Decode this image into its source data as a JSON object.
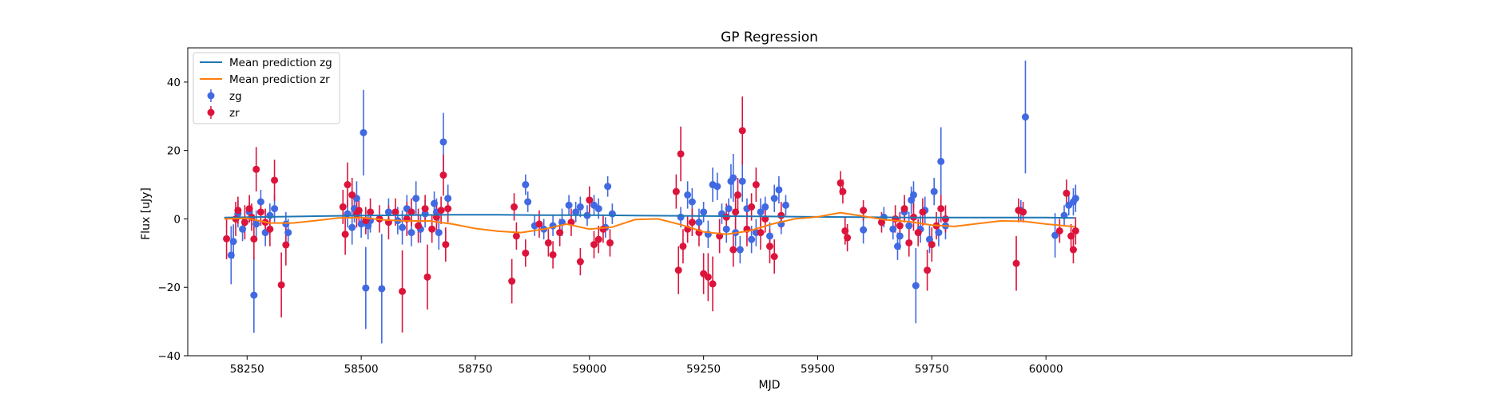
{
  "chart_data": {
    "type": "scatter",
    "title": "GP Regression",
    "xlabel": "MJD",
    "ylabel": "Flux [uJy]",
    "xlim": [
      58120,
      60670
    ],
    "ylim": [
      -40,
      50
    ],
    "xticks": [
      58250,
      58500,
      58750,
      59000,
      59250,
      59500,
      59750,
      60000
    ],
    "yticks": [
      -40,
      -20,
      0,
      20,
      40
    ],
    "grid": false,
    "legend": "top-left",
    "legend_entries": [
      "Mean prediction zg",
      "Mean prediction zr",
      "zg",
      "zr"
    ],
    "colors": {
      "zg_mean": "#1f77b4",
      "zr_mean": "#ff7f0e",
      "zg_points": "#4169e1",
      "zr_points": "#dc143c"
    },
    "series": [
      {
        "name": "Mean prediction zg",
        "kind": "line",
        "x": [
          58200,
          58300,
          58400,
          58500,
          58600,
          58700,
          58800,
          58900,
          59000,
          59100,
          59200,
          59300,
          59400,
          59500,
          59600,
          59700,
          59800,
          59900,
          60000,
          60063
        ],
        "y": [
          0.4,
          0.6,
          0.8,
          1.0,
          1.1,
          1.2,
          1.2,
          1.1,
          1.1,
          1.0,
          0.9,
          0.8,
          0.7,
          0.6,
          0.5,
          0.4,
          0.4,
          0.4,
          0.4,
          0.3
        ]
      },
      {
        "name": "Mean prediction zr",
        "kind": "line",
        "x": [
          58200,
          58250,
          58300,
          58350,
          58400,
          58450,
          58500,
          58550,
          58600,
          58650,
          58700,
          58750,
          58800,
          58850,
          58900,
          58950,
          59000,
          59050,
          59100,
          59150,
          59200,
          59250,
          59300,
          59350,
          59400,
          59450,
          59500,
          59550,
          59600,
          59650,
          59700,
          59750,
          59800,
          59850,
          59900,
          59950,
          60000,
          60063
        ],
        "y": [
          0.0,
          0.2,
          -1.2,
          -1.2,
          -0.5,
          0.3,
          0.4,
          -0.3,
          -0.6,
          -0.6,
          -1.5,
          -2.8,
          -3.6,
          -4.0,
          -3.0,
          -1.5,
          -3.0,
          -2.4,
          -0.2,
          0.0,
          -1.7,
          -3.8,
          -4.5,
          -3.5,
          -1.5,
          0.0,
          0.6,
          1.8,
          0.8,
          -0.3,
          -0.8,
          -1.8,
          -2.2,
          -1.4,
          -0.6,
          -0.7,
          -1.5,
          -2.3
        ]
      },
      {
        "name": "zg",
        "kind": "errorbar",
        "points": [
          [
            58215,
            -10.6,
            8.5
          ],
          [
            58220,
            -6.6,
            5.0
          ],
          [
            58230,
            1.5,
            4.0
          ],
          [
            58240,
            -3.0,
            3.5
          ],
          [
            58255,
            2.0,
            3.0
          ],
          [
            58265,
            -22.3,
            11.0
          ],
          [
            58270,
            -1.5,
            4.0
          ],
          [
            58280,
            5.0,
            3.5
          ],
          [
            58290,
            -4.0,
            4.0
          ],
          [
            58300,
            1.0,
            3.5
          ],
          [
            58310,
            3.0,
            4.0
          ],
          [
            58335,
            -1.5,
            3.5
          ],
          [
            58340,
            -4.0,
            4.0
          ],
          [
            58470,
            1.5,
            4.0
          ],
          [
            58480,
            -2.5,
            5.0
          ],
          [
            58485,
            3.0,
            4.0
          ],
          [
            58490,
            6.0,
            5.0
          ],
          [
            58500,
            -1.5,
            4.0
          ],
          [
            58505,
            25.2,
            12.5
          ],
          [
            58510,
            -20.2,
            12.0
          ],
          [
            58515,
            -2.0,
            4.0
          ],
          [
            58520,
            -0.5,
            3.5
          ],
          [
            58545,
            -20.4,
            16.0
          ],
          [
            58560,
            2.0,
            4.0
          ],
          [
            58580,
            -0.5,
            4.0
          ],
          [
            58590,
            -2.5,
            5.0
          ],
          [
            58600,
            3.0,
            4.0
          ],
          [
            58610,
            -4.0,
            4.0
          ],
          [
            58620,
            6.0,
            5.0
          ],
          [
            58630,
            -3.0,
            4.0
          ],
          [
            58640,
            1.5,
            4.0
          ],
          [
            58660,
            4.5,
            3.5
          ],
          [
            58665,
            2.0,
            4.0
          ],
          [
            58670,
            -4.0,
            5.0
          ],
          [
            58680,
            22.5,
            8.5
          ],
          [
            58690,
            6.0,
            4.0
          ],
          [
            58860,
            10.0,
            3.0
          ],
          [
            58865,
            5.0,
            3.0
          ],
          [
            58880,
            -2.0,
            3.0
          ],
          [
            58900,
            -3.0,
            3.0
          ],
          [
            58920,
            -2.0,
            3.0
          ],
          [
            58940,
            -1.0,
            4.0
          ],
          [
            58955,
            4.0,
            3.0
          ],
          [
            58970,
            2.0,
            3.0
          ],
          [
            58980,
            3.5,
            3.0
          ],
          [
            58995,
            1.0,
            3.0
          ],
          [
            59010,
            4.0,
            3.0
          ],
          [
            59020,
            3.0,
            3.0
          ],
          [
            59035,
            -2.5,
            3.0
          ],
          [
            59040,
            9.5,
            3.0
          ],
          [
            59050,
            1.5,
            3.0
          ],
          [
            59200,
            0.5,
            3.0
          ],
          [
            59215,
            7.0,
            4.0
          ],
          [
            59225,
            5.0,
            4.0
          ],
          [
            59240,
            -1.0,
            4.0
          ],
          [
            59250,
            2.0,
            3.0
          ],
          [
            59260,
            -4.5,
            4.0
          ],
          [
            59270,
            10.0,
            5.0
          ],
          [
            59280,
            9.5,
            4.0
          ],
          [
            59290,
            1.5,
            3.0
          ],
          [
            59300,
            -3.0,
            4.0
          ],
          [
            59305,
            3.0,
            3.0
          ],
          [
            59310,
            11.0,
            5.0
          ],
          [
            59315,
            12.0,
            7.0
          ],
          [
            59320,
            -4.0,
            4.0
          ],
          [
            59330,
            -9.0,
            4.0
          ],
          [
            59335,
            11.0,
            6.0
          ],
          [
            59345,
            3.0,
            3.0
          ],
          [
            59355,
            -6.0,
            4.0
          ],
          [
            59365,
            -4.0,
            4.0
          ],
          [
            59375,
            2.0,
            4.0
          ],
          [
            59385,
            3.5,
            3.0
          ],
          [
            59395,
            -5.0,
            4.0
          ],
          [
            59405,
            6.0,
            4.0
          ],
          [
            59415,
            8.5,
            4.0
          ],
          [
            59420,
            -1.5,
            3.0
          ],
          [
            59430,
            4.0,
            3.0
          ],
          [
            59600,
            -3.2,
            4.0
          ],
          [
            59645,
            0.5,
            3.0
          ],
          [
            59665,
            -3.0,
            3.0
          ],
          [
            59675,
            -8.0,
            4.0
          ],
          [
            59680,
            -5.0,
            4.0
          ],
          [
            59690,
            2.0,
            3.0
          ],
          [
            59700,
            -2.0,
            4.0
          ],
          [
            59705,
            5.5,
            4.0
          ],
          [
            59710,
            7.0,
            4.0
          ],
          [
            59715,
            -19.5,
            11.0
          ],
          [
            59725,
            -3.0,
            4.0
          ],
          [
            59735,
            2.5,
            4.0
          ],
          [
            59745,
            -6.0,
            4.0
          ],
          [
            59755,
            8.0,
            4.0
          ],
          [
            59765,
            -4.0,
            4.0
          ],
          [
            59770,
            16.8,
            10.0
          ],
          [
            59780,
            -2.0,
            4.0
          ],
          [
            59945,
            2.5,
            3.0
          ],
          [
            59955,
            29.8,
            16.5
          ],
          [
            60020,
            -4.8,
            6.5
          ],
          [
            60040,
            1.0,
            3.0
          ],
          [
            60050,
            4.0,
            3.0
          ],
          [
            60060,
            5.0,
            4.0
          ],
          [
            60065,
            6.0,
            4.0
          ]
        ]
      },
      {
        "name": "zr",
        "kind": "errorbar",
        "points": [
          [
            58205,
            -5.8,
            6.0
          ],
          [
            58225,
            0.0,
            5.0
          ],
          [
            58230,
            2.5,
            4.0
          ],
          [
            58245,
            -1.0,
            5.0
          ],
          [
            58255,
            3.0,
            4.0
          ],
          [
            58260,
            0.5,
            4.0
          ],
          [
            58265,
            -5.9,
            6.0
          ],
          [
            58270,
            14.5,
            6.5
          ],
          [
            58280,
            2.0,
            4.0
          ],
          [
            58290,
            -1.0,
            4.0
          ],
          [
            58300,
            -3.0,
            5.0
          ],
          [
            58310,
            11.3,
            6.0
          ],
          [
            58325,
            -19.3,
            9.5
          ],
          [
            58335,
            -7.6,
            6.0
          ],
          [
            58460,
            3.5,
            5.0
          ],
          [
            58465,
            -4.5,
            6.0
          ],
          [
            58470,
            10.0,
            6.5
          ],
          [
            58480,
            7.0,
            5.0
          ],
          [
            58490,
            1.5,
            4.0
          ],
          [
            58495,
            2.5,
            4.0
          ],
          [
            58510,
            -0.5,
            4.0
          ],
          [
            58520,
            2.0,
            4.0
          ],
          [
            58540,
            0.0,
            4.0
          ],
          [
            58560,
            -1.0,
            5.0
          ],
          [
            58575,
            2.0,
            4.0
          ],
          [
            58590,
            -21.2,
            12.0
          ],
          [
            58600,
            0.0,
            5.0
          ],
          [
            58610,
            2.0,
            4.0
          ],
          [
            58625,
            -2.0,
            5.0
          ],
          [
            58640,
            3.0,
            4.0
          ],
          [
            58645,
            -17.0,
            9.5
          ],
          [
            58655,
            -3.0,
            4.0
          ],
          [
            58665,
            0.5,
            4.0
          ],
          [
            58675,
            2.5,
            4.0
          ],
          [
            58680,
            12.8,
            6.0
          ],
          [
            58685,
            -7.5,
            5.0
          ],
          [
            58690,
            3.0,
            4.0
          ],
          [
            58830,
            -18.2,
            6.5
          ],
          [
            58835,
            3.5,
            4.0
          ],
          [
            58840,
            -5.0,
            4.0
          ],
          [
            58860,
            -10.0,
            4.0
          ],
          [
            58890,
            -1.5,
            4.0
          ],
          [
            58910,
            -7.0,
            4.0
          ],
          [
            58920,
            -10.5,
            4.0
          ],
          [
            58935,
            -4.0,
            4.0
          ],
          [
            58960,
            -1.0,
            4.0
          ],
          [
            58980,
            -12.5,
            4.0
          ],
          [
            59000,
            5.5,
            4.0
          ],
          [
            59010,
            -7.5,
            4.0
          ],
          [
            59020,
            -6.0,
            4.0
          ],
          [
            59030,
            -3.0,
            4.0
          ],
          [
            59045,
            -7.0,
            4.0
          ],
          [
            59190,
            8.0,
            5.0
          ],
          [
            59195,
            -15.0,
            7.0
          ],
          [
            59200,
            19.0,
            8.0
          ],
          [
            59205,
            -8.0,
            5.0
          ],
          [
            59215,
            -3.0,
            4.0
          ],
          [
            59225,
            -1.0,
            4.0
          ],
          [
            59240,
            -4.0,
            4.0
          ],
          [
            59250,
            -16.0,
            6.0
          ],
          [
            59260,
            -17.0,
            7.0
          ],
          [
            59270,
            -19.0,
            8.0
          ],
          [
            59285,
            -5.0,
            5.0
          ],
          [
            59300,
            0.5,
            4.0
          ],
          [
            59315,
            -9.0,
            5.0
          ],
          [
            59320,
            2.0,
            5.0
          ],
          [
            59325,
            7.0,
            5.0
          ],
          [
            59335,
            25.8,
            10.0
          ],
          [
            59345,
            -3.0,
            5.0
          ],
          [
            59355,
            3.5,
            4.0
          ],
          [
            59365,
            10.0,
            5.0
          ],
          [
            59375,
            -4.0,
            5.0
          ],
          [
            59385,
            0.0,
            4.0
          ],
          [
            59395,
            -8.0,
            5.0
          ],
          [
            59405,
            -11.0,
            5.0
          ],
          [
            59420,
            1.0,
            4.0
          ],
          [
            59550,
            10.5,
            3.5
          ],
          [
            59555,
            8.0,
            3.5
          ],
          [
            59560,
            -3.5,
            4.0
          ],
          [
            59565,
            -5.5,
            4.0
          ],
          [
            59600,
            2.5,
            3.0
          ],
          [
            59640,
            -1.0,
            3.0
          ],
          [
            59670,
            0.0,
            4.0
          ],
          [
            59680,
            -2.0,
            4.0
          ],
          [
            59690,
            3.0,
            4.0
          ],
          [
            59700,
            -7.0,
            4.0
          ],
          [
            59710,
            0.5,
            4.0
          ],
          [
            59720,
            -4.0,
            4.0
          ],
          [
            59730,
            2.0,
            4.0
          ],
          [
            59740,
            -15.0,
            6.0
          ],
          [
            59750,
            -7.5,
            5.0
          ],
          [
            59760,
            -2.0,
            4.0
          ],
          [
            59770,
            3.0,
            4.0
          ],
          [
            59780,
            0.0,
            4.0
          ],
          [
            59935,
            -13.0,
            8.0
          ],
          [
            59940,
            2.5,
            3.5
          ],
          [
            59950,
            2.0,
            3.0
          ],
          [
            60030,
            -3.5,
            3.5
          ],
          [
            60045,
            7.5,
            4.0
          ],
          [
            60055,
            -5.0,
            3.5
          ],
          [
            60060,
            -9.0,
            4.0
          ],
          [
            60065,
            -3.5,
            4.0
          ]
        ]
      }
    ]
  }
}
